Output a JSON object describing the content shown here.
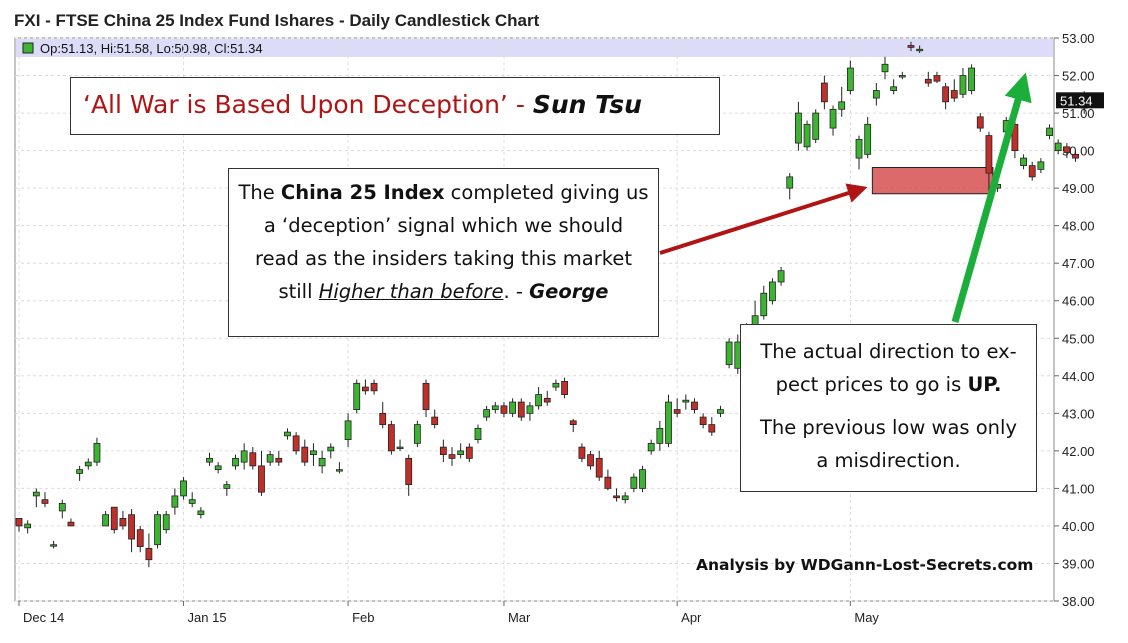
{
  "chart_data": {
    "type": "candlestick",
    "title": "FXI - FTSE China 25 Index Fund Ishares - Daily Candlestick Chart",
    "ohlc_label": "Op:51.13, Hi:51.58, Lo:50.98, Cl:51.34",
    "last_price": "51.34",
    "ylim": [
      38,
      53
    ],
    "y_ticks": [
      "38.00",
      "39.00",
      "40.00",
      "41.00",
      "42.00",
      "43.00",
      "44.00",
      "45.00",
      "46.00",
      "47.00",
      "48.00",
      "49.00",
      "50.00",
      "51.00",
      "52.00",
      "53.00"
    ],
    "x_ticks": [
      "Dec 14",
      "Jan 15",
      "Feb",
      "Mar",
      "Apr",
      "May"
    ],
    "x_tick_index": [
      0,
      19,
      38,
      56,
      76,
      96
    ],
    "colors": {
      "up": "#3cb432",
      "down": "#c0302a",
      "wick": "#222222",
      "header_band": "#dcdcf8",
      "support_box": "#d65050",
      "red_arrow": "#b01414",
      "green_arrow": "#1cae3a"
    },
    "support_zone": {
      "idx_start": 99,
      "idx_end": 112,
      "low": 48.85,
      "high": 49.55
    },
    "candles": [
      {
        "o": 40.2,
        "h": 40.2,
        "l": 39.85,
        "c": 40.0
      },
      {
        "o": 39.95,
        "h": 40.15,
        "l": 39.8,
        "c": 40.05
      },
      {
        "o": 40.8,
        "h": 41.0,
        "l": 40.5,
        "c": 40.9
      },
      {
        "o": 40.7,
        "h": 40.9,
        "l": 40.5,
        "c": 40.6
      },
      {
        "o": 39.5,
        "h": 39.6,
        "l": 39.4,
        "c": 39.5
      },
      {
        "o": 40.4,
        "h": 40.7,
        "l": 40.2,
        "c": 40.6
      },
      {
        "o": 40.1,
        "h": 40.2,
        "l": 40.0,
        "c": 40.0
      },
      {
        "o": 41.4,
        "h": 41.6,
        "l": 41.2,
        "c": 41.5
      },
      {
        "o": 41.6,
        "h": 41.8,
        "l": 41.5,
        "c": 41.7
      },
      {
        "o": 41.7,
        "h": 42.35,
        "l": 41.6,
        "c": 42.2
      },
      {
        "o": 40.0,
        "h": 40.4,
        "l": 40.0,
        "c": 40.3
      },
      {
        "o": 40.5,
        "h": 40.5,
        "l": 39.8,
        "c": 39.9
      },
      {
        "o": 40.2,
        "h": 40.4,
        "l": 39.9,
        "c": 40.0
      },
      {
        "o": 40.3,
        "h": 40.45,
        "l": 39.3,
        "c": 39.65
      },
      {
        "o": 39.9,
        "h": 40.0,
        "l": 39.3,
        "c": 39.45
      },
      {
        "o": 39.4,
        "h": 39.8,
        "l": 38.9,
        "c": 39.1
      },
      {
        "o": 39.5,
        "h": 40.4,
        "l": 39.4,
        "c": 40.3
      },
      {
        "o": 39.9,
        "h": 40.4,
        "l": 39.8,
        "c": 40.3
      },
      {
        "o": 40.5,
        "h": 41.0,
        "l": 40.3,
        "c": 40.8
      },
      {
        "o": 40.8,
        "h": 41.3,
        "l": 40.7,
        "c": 41.2
      },
      {
        "o": 40.6,
        "h": 40.9,
        "l": 40.5,
        "c": 40.7
      },
      {
        "o": 40.3,
        "h": 40.5,
        "l": 40.2,
        "c": 40.4
      },
      {
        "o": 41.7,
        "h": 41.95,
        "l": 41.6,
        "c": 41.8
      },
      {
        "o": 41.5,
        "h": 41.7,
        "l": 41.4,
        "c": 41.6
      },
      {
        "o": 41.0,
        "h": 41.2,
        "l": 40.8,
        "c": 41.1
      },
      {
        "o": 41.6,
        "h": 41.9,
        "l": 41.5,
        "c": 41.8
      },
      {
        "o": 41.7,
        "h": 42.2,
        "l": 41.5,
        "c": 42.0
      },
      {
        "o": 41.95,
        "h": 42.1,
        "l": 41.5,
        "c": 41.6
      },
      {
        "o": 41.6,
        "h": 42.0,
        "l": 40.8,
        "c": 40.9
      },
      {
        "o": 41.7,
        "h": 42.0,
        "l": 41.6,
        "c": 41.9
      },
      {
        "o": 41.8,
        "h": 42.0,
        "l": 41.6,
        "c": 41.7
      },
      {
        "o": 42.4,
        "h": 42.6,
        "l": 42.3,
        "c": 42.5
      },
      {
        "o": 42.4,
        "h": 42.5,
        "l": 41.9,
        "c": 42.0
      },
      {
        "o": 42.1,
        "h": 42.3,
        "l": 41.6,
        "c": 41.7
      },
      {
        "o": 41.9,
        "h": 42.2,
        "l": 41.6,
        "c": 42.0
      },
      {
        "o": 41.6,
        "h": 42.0,
        "l": 41.4,
        "c": 41.8
      },
      {
        "o": 42.0,
        "h": 42.2,
        "l": 41.8,
        "c": 42.1
      },
      {
        "o": 41.5,
        "h": 41.7,
        "l": 41.4,
        "c": 41.5
      },
      {
        "o": 42.3,
        "h": 43.0,
        "l": 42.1,
        "c": 42.8
      },
      {
        "o": 43.1,
        "h": 43.9,
        "l": 43.0,
        "c": 43.8
      },
      {
        "o": 43.7,
        "h": 43.9,
        "l": 43.5,
        "c": 43.6
      },
      {
        "o": 43.8,
        "h": 43.9,
        "l": 43.5,
        "c": 43.6
      },
      {
        "o": 43.0,
        "h": 43.3,
        "l": 42.6,
        "c": 42.7
      },
      {
        "o": 42.7,
        "h": 42.8,
        "l": 41.9,
        "c": 42.0
      },
      {
        "o": 42.1,
        "h": 42.3,
        "l": 42.0,
        "c": 42.1
      },
      {
        "o": 41.8,
        "h": 41.9,
        "l": 40.8,
        "c": 41.1
      },
      {
        "o": 42.2,
        "h": 42.8,
        "l": 42.1,
        "c": 42.7
      },
      {
        "o": 43.8,
        "h": 43.9,
        "l": 42.9,
        "c": 43.1
      },
      {
        "o": 42.9,
        "h": 43.1,
        "l": 42.6,
        "c": 42.7
      },
      {
        "o": 42.1,
        "h": 42.3,
        "l": 41.7,
        "c": 41.9
      },
      {
        "o": 41.9,
        "h": 42.1,
        "l": 41.6,
        "c": 41.8
      },
      {
        "o": 41.9,
        "h": 42.2,
        "l": 41.8,
        "c": 42.0
      },
      {
        "o": 42.1,
        "h": 42.2,
        "l": 41.7,
        "c": 41.8
      },
      {
        "o": 42.3,
        "h": 42.7,
        "l": 42.2,
        "c": 42.6
      },
      {
        "o": 42.9,
        "h": 43.2,
        "l": 42.8,
        "c": 43.1
      },
      {
        "o": 43.1,
        "h": 43.3,
        "l": 43.0,
        "c": 43.2
      },
      {
        "o": 43.2,
        "h": 43.3,
        "l": 42.9,
        "c": 43.0
      },
      {
        "o": 43.0,
        "h": 43.4,
        "l": 42.9,
        "c": 43.3
      },
      {
        "o": 43.3,
        "h": 43.4,
        "l": 42.8,
        "c": 42.9
      },
      {
        "o": 43.0,
        "h": 43.3,
        "l": 42.8,
        "c": 43.2
      },
      {
        "o": 43.2,
        "h": 43.7,
        "l": 43.1,
        "c": 43.5
      },
      {
        "o": 43.4,
        "h": 43.6,
        "l": 43.2,
        "c": 43.3
      },
      {
        "o": 43.7,
        "h": 43.9,
        "l": 43.6,
        "c": 43.8
      },
      {
        "o": 43.85,
        "h": 43.95,
        "l": 43.4,
        "c": 43.5
      },
      {
        "o": 42.8,
        "h": 42.85,
        "l": 42.5,
        "c": 42.7
      },
      {
        "o": 42.1,
        "h": 42.2,
        "l": 41.7,
        "c": 41.8
      },
      {
        "o": 41.9,
        "h": 42.0,
        "l": 41.5,
        "c": 41.6
      },
      {
        "o": 41.8,
        "h": 42.0,
        "l": 41.2,
        "c": 41.3
      },
      {
        "o": 41.3,
        "h": 41.5,
        "l": 40.95,
        "c": 41.0
      },
      {
        "o": 40.8,
        "h": 41.0,
        "l": 40.65,
        "c": 40.75
      },
      {
        "o": 40.7,
        "h": 40.9,
        "l": 40.6,
        "c": 40.8
      },
      {
        "o": 41.0,
        "h": 41.4,
        "l": 40.9,
        "c": 41.3
      },
      {
        "o": 41.0,
        "h": 41.6,
        "l": 40.9,
        "c": 41.5
      },
      {
        "o": 42.0,
        "h": 42.3,
        "l": 41.9,
        "c": 42.2
      },
      {
        "o": 42.2,
        "h": 42.8,
        "l": 42.0,
        "c": 42.6
      },
      {
        "o": 42.2,
        "h": 43.5,
        "l": 42.1,
        "c": 43.3
      },
      {
        "o": 43.1,
        "h": 43.4,
        "l": 42.9,
        "c": 43.0
      },
      {
        "o": 43.3,
        "h": 43.5,
        "l": 43.1,
        "c": 43.35
      },
      {
        "o": 43.3,
        "h": 43.4,
        "l": 43.0,
        "c": 43.1
      },
      {
        "o": 42.9,
        "h": 43.0,
        "l": 42.6,
        "c": 42.7
      },
      {
        "o": 42.7,
        "h": 42.9,
        "l": 42.4,
        "c": 42.5
      },
      {
        "o": 43.0,
        "h": 43.2,
        "l": 42.9,
        "c": 43.1
      },
      {
        "o": 44.3,
        "h": 45.0,
        "l": 44.2,
        "c": 44.9
      },
      {
        "o": 44.2,
        "h": 45.1,
        "l": 44.05,
        "c": 44.9
      },
      {
        "o": 45.0,
        "h": 45.4,
        "l": 44.9,
        "c": 45.3
      },
      {
        "o": 45.2,
        "h": 46.0,
        "l": 45.1,
        "c": 45.6
      },
      {
        "o": 45.6,
        "h": 46.4,
        "l": 45.5,
        "c": 46.2
      },
      {
        "o": 46.0,
        "h": 46.6,
        "l": 45.9,
        "c": 46.5
      },
      {
        "o": 46.5,
        "h": 46.9,
        "l": 46.4,
        "c": 46.8
      },
      {
        "o": 49.0,
        "h": 49.4,
        "l": 48.7,
        "c": 49.3
      },
      {
        "o": 50.2,
        "h": 51.3,
        "l": 50.0,
        "c": 51.0
      },
      {
        "o": 50.1,
        "h": 50.8,
        "l": 50.0,
        "c": 50.7
      },
      {
        "o": 50.3,
        "h": 51.1,
        "l": 50.2,
        "c": 51.0
      },
      {
        "o": 51.8,
        "h": 52.0,
        "l": 51.1,
        "c": 51.3
      },
      {
        "o": 50.6,
        "h": 51.2,
        "l": 50.4,
        "c": 51.1
      },
      {
        "o": 51.1,
        "h": 51.7,
        "l": 50.9,
        "c": 51.3
      },
      {
        "o": 51.6,
        "h": 52.4,
        "l": 51.5,
        "c": 52.2
      },
      {
        "o": 49.8,
        "h": 50.4,
        "l": 49.5,
        "c": 50.3
      },
      {
        "o": 49.9,
        "h": 50.9,
        "l": 49.8,
        "c": 50.7
      },
      {
        "o": 51.4,
        "h": 51.8,
        "l": 51.2,
        "c": 51.6
      },
      {
        "o": 52.1,
        "h": 52.5,
        "l": 51.9,
        "c": 52.3
      },
      {
        "o": 51.6,
        "h": 51.9,
        "l": 51.5,
        "c": 51.7
      },
      {
        "o": 52.0,
        "h": 52.1,
        "l": 51.9,
        "c": 52.0
      },
      {
        "o": 52.8,
        "h": 52.9,
        "l": 52.65,
        "c": 52.75
      },
      {
        "o": 52.7,
        "h": 52.8,
        "l": 52.6,
        "c": 52.7
      },
      {
        "o": 51.9,
        "h": 52.1,
        "l": 51.7,
        "c": 51.8
      },
      {
        "o": 52.0,
        "h": 52.1,
        "l": 51.8,
        "c": 51.85
      },
      {
        "o": 51.7,
        "h": 51.8,
        "l": 51.1,
        "c": 51.3
      },
      {
        "o": 51.6,
        "h": 51.9,
        "l": 51.3,
        "c": 51.4
      },
      {
        "o": 51.5,
        "h": 52.2,
        "l": 51.4,
        "c": 52.0
      },
      {
        "o": 51.6,
        "h": 52.3,
        "l": 51.5,
        "c": 52.2
      },
      {
        "o": 50.9,
        "h": 51.0,
        "l": 50.5,
        "c": 50.6
      },
      {
        "o": 50.4,
        "h": 50.5,
        "l": 48.9,
        "c": 49.4
      },
      {
        "o": 49.0,
        "h": 49.2,
        "l": 48.9,
        "c": 49.1
      },
      {
        "o": 50.5,
        "h": 50.9,
        "l": 50.4,
        "c": 50.8
      },
      {
        "o": 50.7,
        "h": 50.8,
        "l": 49.8,
        "c": 50.0
      },
      {
        "o": 49.6,
        "h": 49.9,
        "l": 49.5,
        "c": 49.8
      },
      {
        "o": 49.6,
        "h": 49.7,
        "l": 49.2,
        "c": 49.3
      },
      {
        "o": 49.5,
        "h": 49.8,
        "l": 49.4,
        "c": 49.7
      },
      {
        "o": 50.4,
        "h": 50.7,
        "l": 50.3,
        "c": 50.6
      },
      {
        "o": 50.0,
        "h": 50.3,
        "l": 49.9,
        "c": 50.2
      },
      {
        "o": 50.1,
        "h": 50.2,
        "l": 49.8,
        "c": 49.95
      },
      {
        "o": 49.9,
        "h": 50.0,
        "l": 49.7,
        "c": 49.8
      },
      {
        "o": 51.13,
        "h": 51.58,
        "l": 50.98,
        "c": 51.34
      }
    ]
  },
  "annotations": {
    "quote_main": "‘All War is Based Upon Deception’",
    "quote_dash": " - ",
    "quote_author": "Sun Tsu",
    "china": {
      "l1": "The ",
      "b1": "China 25 Index",
      "l1b": " completed giving us",
      "l2": "a ‘deception’ signal which we should",
      "l3": "read as the insiders taking this market",
      "l4a": "still ",
      "u1": "Higher than before",
      "l4b": ". - ",
      "i1": "George"
    },
    "direction": {
      "p1a": "The actual direction to ex-",
      "p1b": "pect prices to go is ",
      "p1c": "UP.",
      "p2a": "The previous low was only",
      "p2b": "a misdirection."
    },
    "credit": "Analysis by WDGann-Lost-Secrets.com"
  }
}
